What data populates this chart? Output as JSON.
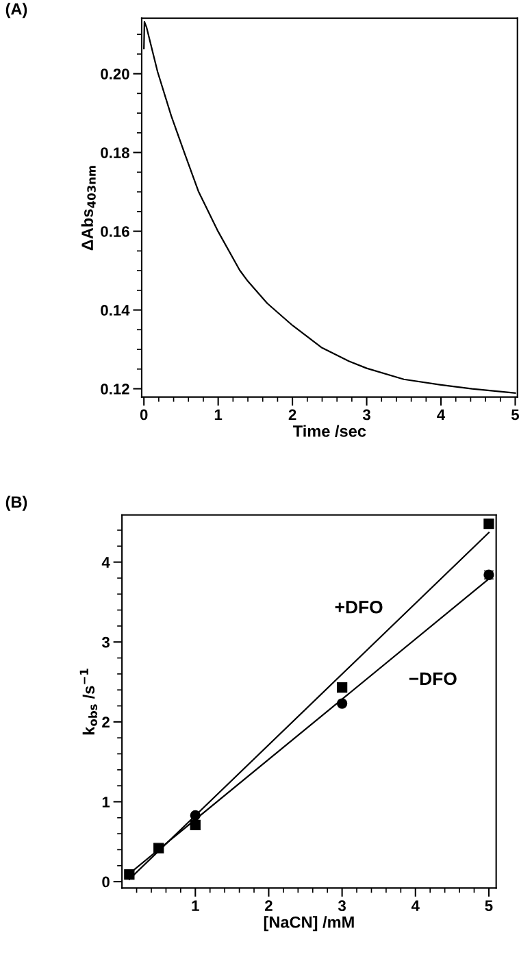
{
  "chart_data": [
    {
      "type": "line",
      "title": "(A)",
      "xlabel": "Time /sec",
      "ylabel": "ΔAbs$_{403nm}$",
      "x": [
        0,
        0.007,
        0.037,
        0.184,
        0.368,
        0.553,
        0.737,
        1.0,
        1.29,
        1.4,
        1.66,
        2.0,
        2.39,
        2.76,
        3.0,
        3.5,
        4.0,
        4.42,
        5.0
      ],
      "series": [
        {
          "color": "#000000",
          "values": [
            0.2064,
            0.2132,
            0.2117,
            0.2005,
            0.1893,
            0.1795,
            0.17,
            0.1599,
            0.1501,
            0.1473,
            0.1417,
            0.1361,
            0.1305,
            0.127,
            0.1252,
            0.1224,
            0.121,
            0.12,
            0.1189
          ]
        }
      ],
      "xlim": [
        -0.03,
        5.03
      ],
      "ylim": [
        0.1179,
        0.2141
      ],
      "xticks": [
        0,
        {
          "value": 0.2,
          "label": null
        },
        {
          "value": 0.4,
          "label": null
        },
        {
          "value": 0.6,
          "label": null
        },
        {
          "value": 0.8,
          "label": null
        },
        1,
        {
          "value": 1.2,
          "label": null
        },
        {
          "value": 1.4,
          "label": null
        },
        {
          "value": 1.6,
          "label": null
        },
        {
          "value": 1.8,
          "label": null
        },
        2,
        {
          "value": 2.2,
          "label": null
        },
        {
          "value": 2.4,
          "label": null
        },
        {
          "value": 2.6,
          "label": null
        },
        {
          "value": 2.8,
          "label": null
        },
        3,
        {
          "value": 3.2,
          "label": null
        },
        {
          "value": 3.4,
          "label": null
        },
        {
          "value": 3.6,
          "label": null
        },
        {
          "value": 3.8,
          "label": null
        },
        4,
        {
          "value": 4.2,
          "label": null
        },
        {
          "value": 4.4,
          "label": null
        },
        {
          "value": 4.6,
          "label": null
        },
        {
          "value": 4.8,
          "label": null
        },
        5
      ],
      "yticks": [
        {
          "value": 0.12,
          "label": "0.12"
        },
        {
          "value": 0.125,
          "label": null
        },
        {
          "value": 0.13,
          "label": null
        },
        {
          "value": 0.135,
          "label": null
        },
        {
          "value": 0.14,
          "label": "0.14"
        },
        {
          "value": 0.145,
          "label": null
        },
        {
          "value": 0.15,
          "label": null
        },
        {
          "value": 0.155,
          "label": null
        },
        {
          "value": 0.16,
          "label": "0.16"
        },
        {
          "value": 0.165,
          "label": null
        },
        {
          "value": 0.17,
          "label": null
        },
        {
          "value": 0.175,
          "label": null
        },
        {
          "value": 0.18,
          "label": "0.18"
        },
        {
          "value": 0.185,
          "label": null
        },
        {
          "value": 0.19,
          "label": null
        },
        {
          "value": 0.195,
          "label": null
        },
        {
          "value": 0.2,
          "label": "0.20"
        },
        {
          "value": 0.205,
          "label": null
        },
        {
          "value": 0.21,
          "label": null
        }
      ],
      "grid": false,
      "legend": false,
      "marker": "none",
      "line_style": "solid"
    },
    {
      "type": "scatter",
      "title": "(B)",
      "xlabel": "[NaCN] /mM",
      "ylabel": "k$_{obs}$ /s$^{−1}$",
      "series": [
        {
          "type": "scatter",
          "marker": "square",
          "color": "#000000",
          "x": [
            0.1,
            0.5,
            1,
            3,
            5
          ],
          "values": [
            0.09,
            0.42,
            0.71,
            2.43,
            4.48
          ]
        },
        {
          "type": "scatter",
          "marker": "circle",
          "color": "#000000",
          "x": [
            1,
            3,
            5
          ],
          "values": [
            0.83,
            2.23,
            3.84
          ],
          "errors": [
            null,
            null,
            0.05
          ]
        },
        {
          "type": "line",
          "marker": "none",
          "color": "#000000",
          "x": [
            0.1,
            5
          ],
          "values": [
            0.03,
            4.37
          ]
        },
        {
          "type": "line",
          "marker": "none",
          "color": "#000000",
          "x": [
            0.1,
            5
          ],
          "values": [
            0.1,
            3.79
          ]
        }
      ],
      "annotations": [
        "+DFO",
        "−DFO"
      ],
      "xlim": [
        0,
        5.1
      ],
      "ylim": [
        -0.08,
        4.59
      ],
      "xticks": [
        {
          "value": 0.2,
          "label": null
        },
        {
          "value": 0.4,
          "label": null
        },
        {
          "value": 0.6,
          "label": null
        },
        {
          "value": 0.8,
          "label": null
        },
        1,
        {
          "value": 1.2,
          "label": null
        },
        {
          "value": 1.4,
          "label": null
        },
        {
          "value": 1.6,
          "label": null
        },
        {
          "value": 1.8,
          "label": null
        },
        2,
        {
          "value": 2.2,
          "label": null
        },
        {
          "value": 2.4,
          "label": null
        },
        {
          "value": 2.6,
          "label": null
        },
        {
          "value": 2.8,
          "label": null
        },
        3,
        {
          "value": 3.2,
          "label": null
        },
        {
          "value": 3.4,
          "label": null
        },
        {
          "value": 3.6,
          "label": null
        },
        {
          "value": 3.8,
          "label": null
        },
        4,
        {
          "value": 4.2,
          "label": null
        },
        {
          "value": 4.4,
          "label": null
        },
        {
          "value": 4.6,
          "label": null
        },
        {
          "value": 4.8,
          "label": null
        },
        5
      ],
      "yticks": [
        0,
        {
          "value": 0.2,
          "label": null
        },
        {
          "value": 0.4,
          "label": null
        },
        {
          "value": 0.6,
          "label": null
        },
        {
          "value": 0.8,
          "label": null
        },
        1,
        {
          "value": 1.2,
          "label": null
        },
        {
          "value": 1.4,
          "label": null
        },
        {
          "value": 1.6,
          "label": null
        },
        {
          "value": 1.8,
          "label": null
        },
        2,
        {
          "value": 2.2,
          "label": null
        },
        {
          "value": 2.4,
          "label": null
        },
        {
          "value": 2.6,
          "label": null
        },
        {
          "value": 2.8,
          "label": null
        },
        3,
        {
          "value": 3.2,
          "label": null
        },
        {
          "value": 3.4,
          "label": null
        },
        {
          "value": 3.6,
          "label": null
        },
        {
          "value": 3.8,
          "label": null
        },
        4,
        {
          "value": 4.2,
          "label": null
        },
        {
          "value": 4.4,
          "label": null
        }
      ],
      "grid": false,
      "legend": false
    }
  ]
}
